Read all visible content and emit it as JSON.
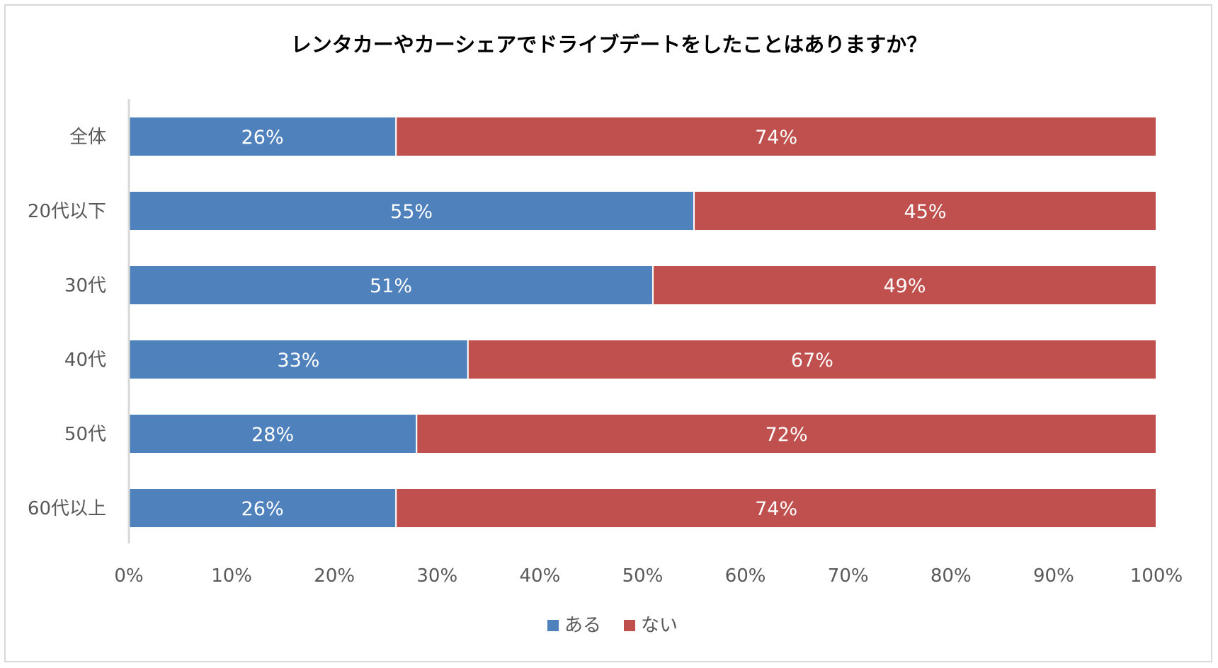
{
  "colors": {
    "series_aru": "#4f81bd",
    "series_nai": "#c0504d",
    "axis": "#d9d9d9",
    "text": "#595959"
  },
  "chart_data": {
    "type": "bar",
    "orientation": "horizontal",
    "stacked": true,
    "title": "レンタカーやカーシェアでドライブデートをしたことはありますか？",
    "categories": [
      "全体",
      "20代以下",
      "30代",
      "40代",
      "50代",
      "60代以上"
    ],
    "series": [
      {
        "name": "ある",
        "values": [
          26,
          55,
          51,
          33,
          28,
          26
        ]
      },
      {
        "name": "ない",
        "values": [
          74,
          45,
          49,
          67,
          72,
          74
        ]
      }
    ],
    "xlim": [
      0,
      100
    ],
    "xticks": [
      0,
      10,
      20,
      30,
      40,
      50,
      60,
      70,
      80,
      90,
      100
    ],
    "tick_suffix": "%",
    "grid": false,
    "legend": "bottom-center"
  }
}
